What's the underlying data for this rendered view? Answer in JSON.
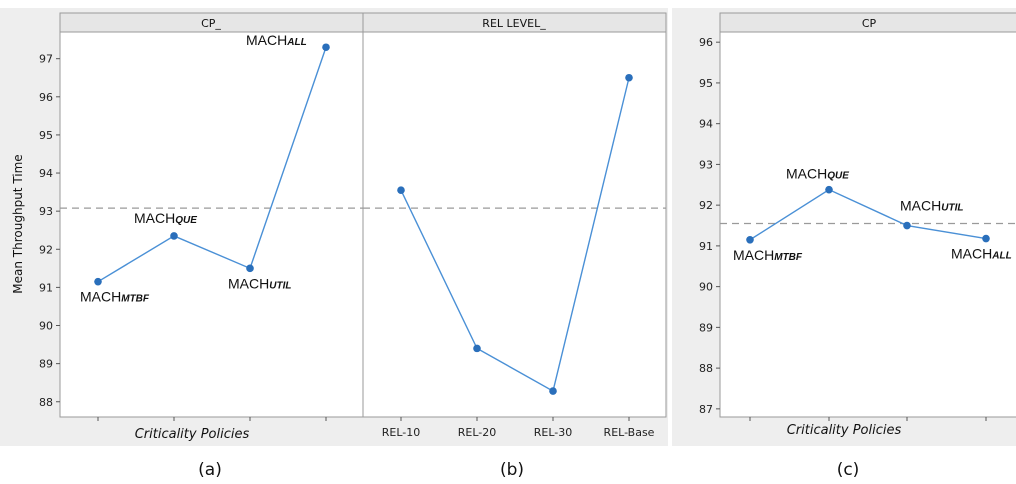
{
  "captions": {
    "a": "(a)",
    "b": "(b)",
    "c": "(c)"
  },
  "chart_data": [
    {
      "type": "line",
      "panel": "a",
      "header": "CP_",
      "xlabel": "Criticality Policies",
      "ylabel": "Mean Throughput Time",
      "categories": [
        "MACH|MTBF",
        "MACH|QUE",
        "MACH|UTIL",
        "MACH|ALL"
      ],
      "point_labels": [
        {
          "main": "MACH",
          "sub": "MTBF"
        },
        {
          "main": "MACH",
          "sub": "QUE"
        },
        {
          "main": "MACH",
          "sub": "UTIL"
        },
        {
          "main": "MACH",
          "sub": "ALL"
        }
      ],
      "values": [
        91.15,
        92.35,
        91.5,
        97.3
      ],
      "mean_line": 93.08,
      "ylim": [
        87.6,
        97.7
      ],
      "yticks": [
        88,
        89,
        90,
        91,
        92,
        93,
        94,
        95,
        96,
        97
      ],
      "color": "#2a6fbb",
      "line_color": "#4a90d6"
    },
    {
      "type": "line",
      "panel": "b",
      "header": "REL LEVEL_",
      "categories": [
        "REL-10",
        "REL-20",
        "REL-30",
        "REL-Base"
      ],
      "tick_labels": [
        "REL-10",
        "REL-20",
        "REL-30",
        "REL-Base"
      ],
      "values": [
        93.55,
        89.4,
        88.28,
        96.5
      ],
      "mean_line": 93.08,
      "ylim": [
        87.6,
        97.7
      ],
      "color": "#2a6fbb",
      "line_color": "#4a90d6"
    },
    {
      "type": "line",
      "panel": "c",
      "header": "CP",
      "xlabel": "Criticality Policies",
      "categories": [
        "MACH|MTBF",
        "MACH|QUE",
        "MACH|UTIL",
        "MACH|ALL"
      ],
      "point_labels": [
        {
          "main": "MACH",
          "sub": "MTBF"
        },
        {
          "main": "MACH",
          "sub": "QUE"
        },
        {
          "main": "MACH",
          "sub": "UTIL"
        },
        {
          "main": "MACH",
          "sub": "ALL"
        }
      ],
      "values": [
        91.15,
        92.38,
        91.5,
        91.18
      ],
      "mean_line": 91.55,
      "ylim": [
        86.8,
        96.25
      ],
      "yticks": [
        87,
        88,
        89,
        90,
        91,
        92,
        93,
        94,
        95,
        96
      ],
      "color": "#2a6fbb",
      "line_color": "#4a90d6"
    }
  ]
}
